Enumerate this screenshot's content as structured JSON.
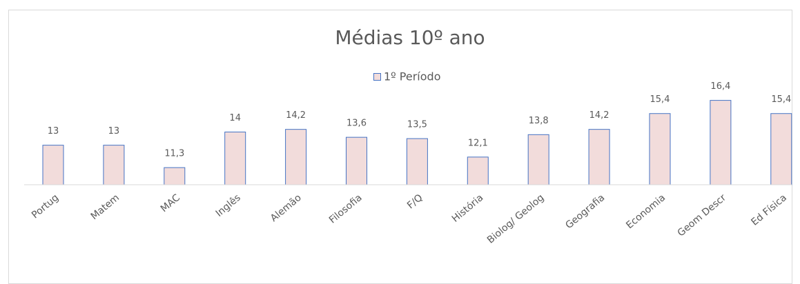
{
  "chart_data": {
    "type": "bar",
    "title": "Médias 10º ano",
    "categories": [
      "Portug",
      "Matem",
      "MAC",
      "Inglês",
      "Alemão",
      "Filosofia",
      "F/Q",
      "História",
      "Biolog/ Geolog",
      "Geografia",
      "Economia",
      "Geom Descr",
      "Ed Física"
    ],
    "series": [
      {
        "name": "1º Período",
        "color": "#f2dcdb",
        "edge_color": "#4472c4",
        "values": [
          13,
          13,
          11.3,
          14,
          14.2,
          13.6,
          13.5,
          12.1,
          13.8,
          14.2,
          15.4,
          16.4,
          15.4
        ],
        "value_labels": [
          "13",
          "13",
          "11,3",
          "14",
          "14,2",
          "13,6",
          "13,5",
          "12,1",
          "13,8",
          "14,2",
          "15,4",
          "16,4",
          "15,4"
        ]
      }
    ],
    "ylim": [
      10,
      18
    ],
    "legend": "top"
  }
}
